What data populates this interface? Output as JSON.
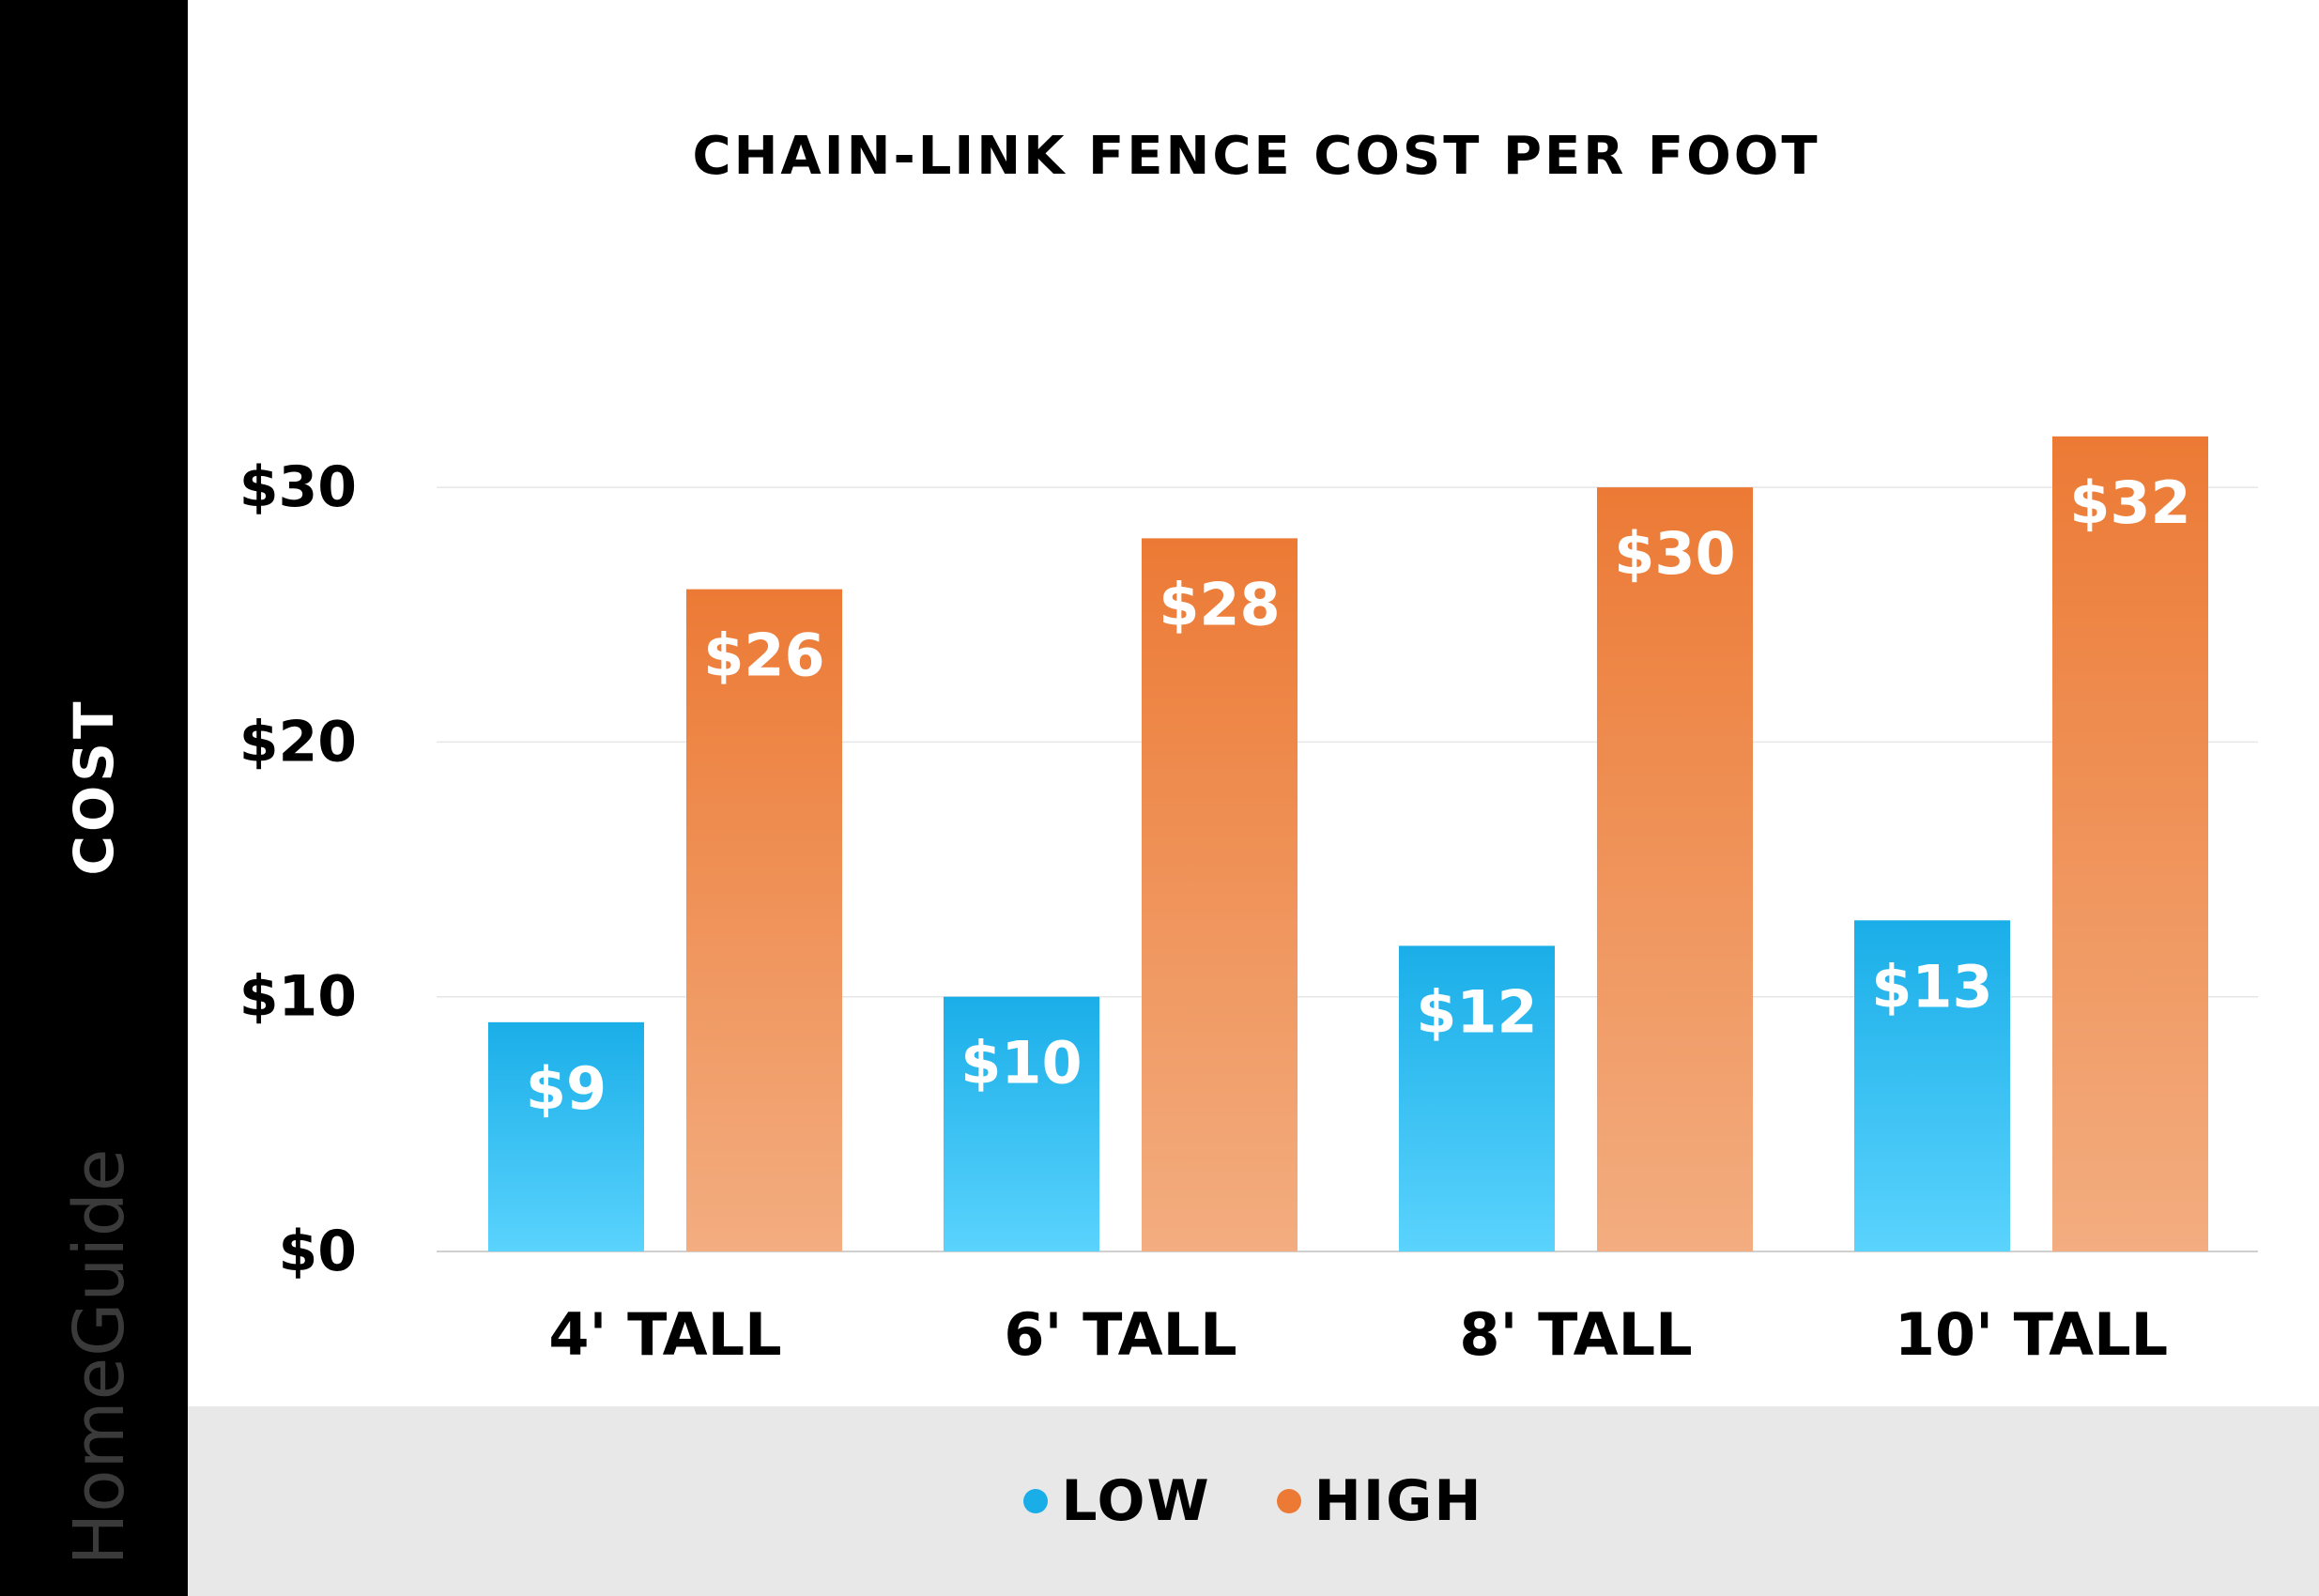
{
  "sidebar": {
    "axis_label": "COST",
    "brand": "HomeGuide"
  },
  "colors": {
    "low_top": "#1aaee8",
    "low_bottom": "#5ad3fd",
    "high_top": "#ec7a35",
    "high_bottom": "#f3ad80",
    "grid": "#e6e6e6",
    "axis_line": "#d0d0d0"
  },
  "legend": [
    {
      "label": "LOW",
      "color": "#1aaee8"
    },
    {
      "label": "HIGH",
      "color": "#ec7a35"
    }
  ],
  "chart_data": {
    "type": "bar",
    "title": "CHAIN-LINK FENCE COST PER FOOT",
    "xlabel": "",
    "ylabel": "COST",
    "ylim": [
      0,
      30
    ],
    "yticks": [
      0,
      10,
      20,
      30
    ],
    "ytick_labels": [
      "$0",
      "$10",
      "$20",
      "$30"
    ],
    "categories": [
      "4' TALL",
      "6' TALL",
      "8' TALL",
      "10' TALL"
    ],
    "series": [
      {
        "name": "LOW",
        "values": [
          9,
          10,
          12,
          13
        ],
        "labels": [
          "$9",
          "$10",
          "$12",
          "$13"
        ]
      },
      {
        "name": "HIGH",
        "values": [
          26,
          28,
          30,
          32
        ],
        "labels": [
          "$26",
          "$28",
          "$30",
          "$32"
        ]
      }
    ],
    "grid": true,
    "legend_position": "bottom"
  }
}
